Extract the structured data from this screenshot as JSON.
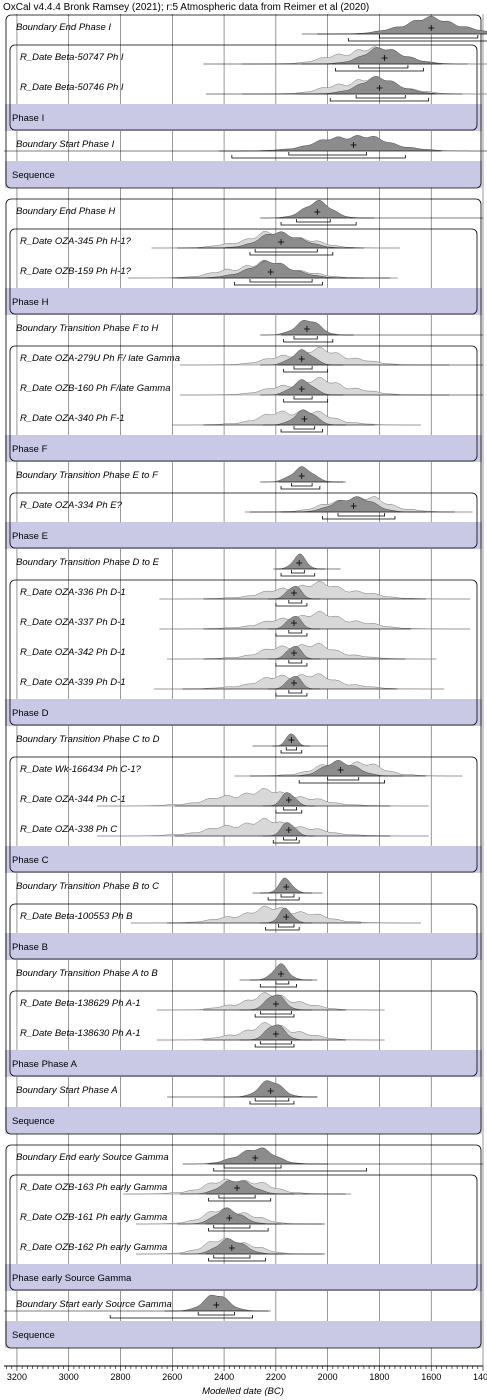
{
  "header": "OxCal v4.4.4 Bronk Ramsey (2021); r:5 Atmospheric data from Reimer et al (2020)",
  "colors": {
    "band": "#c9c9e6",
    "posterior": "#8c8c8c",
    "prior": "#d8d8d8",
    "line": "#000000"
  },
  "chart_data": {
    "type": "bayesian-sequence-plot",
    "xlabel": "Modelled date (BC)",
    "xlim": [
      3250,
      1400
    ],
    "xticks": [
      3200,
      3000,
      2800,
      2600,
      2400,
      2200,
      2000,
      1800,
      1600,
      1400
    ],
    "rows": [
      {
        "kind": "boundary",
        "label": "Boundary End Phase I",
        "mean": 1600,
        "s": 110,
        "range": [
          2100,
          1350
        ],
        "h68": [
          [
            1800,
            1420
          ]
        ],
        "h95": [
          [
            1920,
            1380
          ]
        ]
      },
      {
        "kind": "date",
        "label": "R_Date Beta-50747 Ph I",
        "mean": 1780,
        "s": 80,
        "prior": [
          1850,
          120
        ],
        "range": [
          2480,
          1560
        ],
        "h68": [
          [
            1880,
            1690
          ]
        ],
        "h95": [
          [
            1970,
            1630
          ]
        ]
      },
      {
        "kind": "date",
        "label": "R_Date Beta-50746 Ph I",
        "mean": 1800,
        "s": 80,
        "prior": [
          1850,
          120
        ],
        "range": [
          2470,
          1580
        ],
        "h68": [
          [
            1890,
            1700
          ]
        ],
        "h95": [
          [
            1990,
            1610
          ]
        ]
      },
      {
        "kind": "phase",
        "label": "Phase I"
      },
      {
        "kind": "boundary",
        "label": "Boundary Start Phase I",
        "mean": 1900,
        "s": 130,
        "range": [
          3250,
          1560
        ],
        "h68": [
          [
            2150,
            1850
          ]
        ],
        "h95": [
          [
            2370,
            1700
          ]
        ]
      },
      {
        "kind": "phase",
        "label": "Sequence"
      },
      {
        "kind": "gap"
      },
      {
        "kind": "boundary",
        "label": "Boundary End Phase H",
        "mean": 2040,
        "s": 55,
        "range": [
          2200,
          1400
        ],
        "h68": [
          [
            2120,
            1990
          ]
        ],
        "h95": [
          [
            2180,
            1890
          ]
        ]
      },
      {
        "kind": "date",
        "label": "R_Date OZA-345 Ph H-1?",
        "mean": 2180,
        "s": 80,
        "prior": [
          2200,
          120
        ],
        "range": [
          2580,
          1900
        ],
        "h68": [
          [
            2280,
            2040
          ]
        ],
        "h95": [
          [
            2300,
            1980
          ]
        ]
      },
      {
        "kind": "date",
        "label": "R_Date OZB-159 Ph H-1?",
        "mean": 2220,
        "s": 90,
        "prior": [
          2250,
          130
        ],
        "range": [
          2600,
          1760
        ],
        "h68": [
          [
            2300,
            2060
          ]
        ],
        "h95": [
          [
            2360,
            2020
          ]
        ]
      },
      {
        "kind": "phase",
        "label": "Phase H"
      },
      {
        "kind": "boundary",
        "label": "Boundary Transition Phase F to H",
        "mean": 2080,
        "s": 45,
        "range": [
          2180,
          1400
        ],
        "h68": [
          [
            2130,
            2040
          ]
        ],
        "h95": [
          [
            2170,
            1980
          ]
        ]
      },
      {
        "kind": "date",
        "label": "R_Date OZA-279U Ph F/ late Gamma",
        "mean": 2100,
        "s": 40,
        "prior": [
          2050,
          130
        ],
        "range": [
          2190,
          1400
        ],
        "h68": [
          [
            2130,
            2060
          ]
        ],
        "h95": [
          [
            2170,
            2000
          ]
        ]
      },
      {
        "kind": "date",
        "label": "R_Date OZB-160 Ph F/late Gamma",
        "mean": 2100,
        "s": 40,
        "prior": [
          2050,
          130
        ],
        "range": [
          2190,
          1400
        ],
        "h68": [
          [
            2130,
            2060
          ]
        ],
        "h95": [
          [
            2170,
            2000
          ]
        ]
      },
      {
        "kind": "date",
        "label": "R_Date OZA-340 Ph F-1",
        "mean": 2090,
        "s": 40,
        "prior": [
          2120,
          120
        ],
        "range": [
          2480,
          1820
        ],
        "h68": [
          [
            2130,
            2050
          ]
        ],
        "h95": [
          [
            2180,
            2020
          ]
        ]
      },
      {
        "kind": "phase",
        "label": "Phase F"
      },
      {
        "kind": "boundary",
        "label": "Boundary Transition Phase E to F",
        "mean": 2100,
        "s": 40,
        "range": [
          2190,
          1930
        ],
        "h68": [
          [
            2140,
            2060
          ]
        ],
        "h95": [
          [
            2180,
            2030
          ]
        ]
      },
      {
        "kind": "date",
        "label": "R_Date OZA-334 Ph E?",
        "mean": 1900,
        "s": 70,
        "prior": [
          1880,
          110
        ],
        "range": [
          2300,
          1510
        ],
        "h68": [
          [
            1960,
            1780
          ]
        ],
        "h95": [
          [
            2020,
            1740
          ]
        ]
      },
      {
        "kind": "phase",
        "label": "Phase E"
      },
      {
        "kind": "boundary",
        "label": "Boundary Transition Phase D to E",
        "mean": 2110,
        "s": 25,
        "range": [
          2200,
          1950
        ],
        "h68": [
          [
            2140,
            2090
          ]
        ],
        "h95": [
          [
            2180,
            2050
          ]
        ]
      },
      {
        "kind": "date",
        "label": "R_Date OZA-336 Ph D-1",
        "mean": 2130,
        "s": 25,
        "prior": [
          2050,
          150
        ],
        "range": [
          2480,
          1620
        ],
        "h68": [
          [
            2150,
            2100
          ]
        ],
        "h95": [
          [
            2200,
            2080
          ]
        ]
      },
      {
        "kind": "date",
        "label": "R_Date OZA-337 Ph D-1",
        "mean": 2130,
        "s": 25,
        "prior": [
          2050,
          150
        ],
        "range": [
          2480,
          1680
        ],
        "h68": [
          [
            2150,
            2100
          ]
        ],
        "h95": [
          [
            2200,
            2080
          ]
        ]
      },
      {
        "kind": "date",
        "label": "R_Date OZA-342 Ph D-1",
        "mean": 2130,
        "s": 25,
        "prior": [
          2100,
          130
        ],
        "range": [
          2480,
          1700
        ],
        "h68": [
          [
            2150,
            2100
          ]
        ],
        "h95": [
          [
            2200,
            2080
          ]
        ]
      },
      {
        "kind": "date",
        "label": "R_Date OZA-339 Ph D-1",
        "mean": 2130,
        "s": 25,
        "prior": [
          2110,
          140
        ],
        "range": [
          2560,
          1730
        ],
        "h68": [
          [
            2150,
            2100
          ]
        ],
        "h95": [
          [
            2200,
            2080
          ]
        ]
      },
      {
        "kind": "phase",
        "label": "Phase D"
      },
      {
        "kind": "boundary",
        "label": "Boundary Transition Phase C to D",
        "mean": 2140,
        "s": 18,
        "range": [
          2290,
          2000
        ],
        "h68": [
          [
            2160,
            2120
          ]
        ],
        "h95": [
          [
            2180,
            2100
          ]
        ]
      },
      {
        "kind": "date",
        "label": "R_Date Wk-166434 Ph C-1?",
        "mean": 1950,
        "s": 60,
        "prior": [
          1920,
          110
        ],
        "range": [
          2300,
          1620
        ],
        "h68": [
          [
            2000,
            1880
          ]
        ],
        "h95": [
          [
            2110,
            1780
          ]
        ]
      },
      {
        "kind": "date",
        "label": "R_Date OZA-344 Ph C-1",
        "mean": 2150,
        "s": 25,
        "prior": [
          2250,
          160
        ],
        "range": [
          2590,
          1760
        ],
        "h68": [
          [
            2170,
            2120
          ]
        ],
        "h95": [
          [
            2200,
            2100
          ]
        ]
      },
      {
        "kind": "date",
        "label": "R_Date OZA-338 Ph C",
        "mean": 2150,
        "s": 25,
        "prior": [
          2250,
          160
        ],
        "range": [
          2590,
          1760
        ],
        "h68": [
          [
            2170,
            2120
          ]
        ],
        "h95": [
          [
            2210,
            2110
          ]
        ]
      },
      {
        "kind": "phase",
        "label": "Phase C"
      },
      {
        "kind": "boundary",
        "label": "Boundary Transition Phase B to C",
        "mean": 2160,
        "s": 25,
        "range": [
          2290,
          2020
        ],
        "h68": [
          [
            2180,
            2130
          ]
        ],
        "h95": [
          [
            2230,
            2110
          ]
        ]
      },
      {
        "kind": "date",
        "label": "R_Date Beta-100553 Ph B",
        "mean": 2160,
        "s": 25,
        "prior": [
          2200,
          140
        ],
        "range": [
          2620,
          1870
        ],
        "h68": [
          [
            2190,
            2130
          ]
        ],
        "h95": [
          [
            2240,
            2110
          ]
        ]
      },
      {
        "kind": "phase",
        "label": "Phase B"
      },
      {
        "kind": "boundary",
        "label": "Boundary Transition Phase A to B",
        "mean": 2180,
        "s": 30,
        "range": [
          2340,
          2040
        ],
        "h68": [
          [
            2200,
            2150
          ]
        ],
        "h95": [
          [
            2260,
            2120
          ]
        ]
      },
      {
        "kind": "date",
        "label": "R_Date Beta-138629 Ph A-1",
        "mean": 2200,
        "s": 35,
        "prior": [
          2220,
          110
        ],
        "range": [
          2480,
          1930
        ],
        "h68": [
          [
            2260,
            2140
          ]
        ],
        "h95": [
          [
            2280,
            2130
          ]
        ]
      },
      {
        "kind": "date",
        "label": "R_Date Beta-138630 Ph A-1",
        "mean": 2200,
        "s": 35,
        "prior": [
          2220,
          110
        ],
        "range": [
          2480,
          1930
        ],
        "h68": [
          [
            2260,
            2140
          ]
        ],
        "h95": [
          [
            2280,
            2130
          ]
        ]
      },
      {
        "kind": "phase",
        "label": "Phase Phase A"
      },
      {
        "kind": "boundary",
        "label": "Boundary Start Phase A",
        "mean": 2220,
        "s": 45,
        "range": [
          2620,
          2040
        ],
        "h68": [
          [
            2280,
            2150
          ]
        ],
        "h95": [
          [
            2300,
            2130
          ]
        ]
      },
      {
        "kind": "phase",
        "label": "Sequence"
      },
      {
        "kind": "gap"
      },
      {
        "kind": "boundary",
        "label": "Boundary End early Source Gamma",
        "mean": 2280,
        "s": 70,
        "range": [
          2460,
          1400
        ],
        "h68": [
          [
            2400,
            2180
          ]
        ],
        "h95": [
          [
            2440,
            1850
          ]
        ]
      },
      {
        "kind": "date",
        "label": "R_Date OZB-163 Ph early Gamma",
        "mean": 2350,
        "s": 55,
        "prior": [
          2350,
          110
        ],
        "range": [
          2470,
          1930
        ],
        "h68": [
          [
            2420,
            2280
          ]
        ],
        "h95": [
          [
            2460,
            2220
          ]
        ]
      },
      {
        "kind": "date",
        "label": "R_Date OZB-161 Ph early Gamma",
        "mean": 2380,
        "s": 50,
        "prior": [
          2380,
          90
        ],
        "range": [
          2470,
          2010
        ],
        "h68": [
          [
            2440,
            2300
          ]
        ],
        "h95": [
          [
            2460,
            2230
          ]
        ]
      },
      {
        "kind": "date",
        "label": "R_Date OZB-162 Ph early Gamma",
        "mean": 2370,
        "s": 50,
        "prior": [
          2380,
          90
        ],
        "range": [
          2470,
          2010
        ],
        "h68": [
          [
            2440,
            2300
          ]
        ],
        "h95": [
          [
            2460,
            2240
          ]
        ]
      },
      {
        "kind": "phase",
        "label": "Phase early Source Gamma"
      },
      {
        "kind": "boundary",
        "label": "Boundary Start early Source Gamma",
        "mean": 2430,
        "s": 50,
        "range": [
          3250,
          2220
        ],
        "h68": [
          [
            2500,
            2360
          ]
        ],
        "h95": [
          [
            2840,
            2290
          ]
        ]
      },
      {
        "kind": "phase",
        "label": "Sequence"
      }
    ]
  }
}
